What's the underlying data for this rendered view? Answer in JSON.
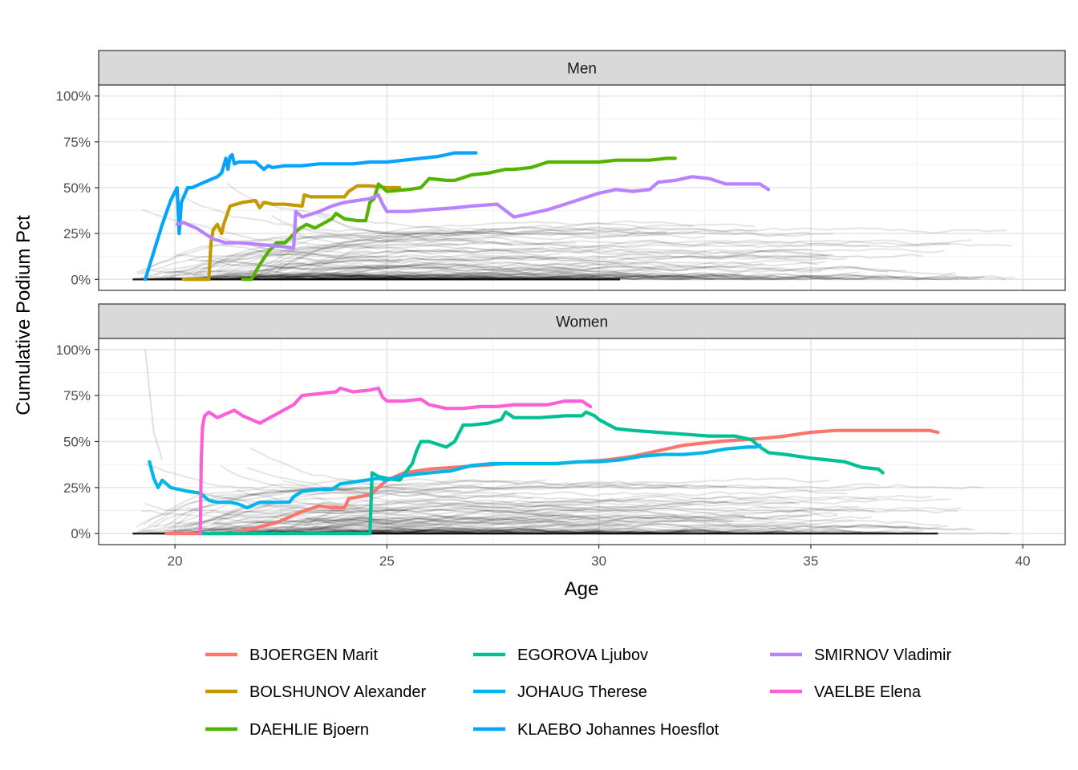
{
  "chart_data": {
    "type": "line",
    "xlabel": "Age",
    "ylabel": "Cumulative Podium Pct",
    "xlim": [
      18.2,
      41.0
    ],
    "ylim": [
      -0.06,
      1.06
    ],
    "x_ticks": [
      20,
      25,
      30,
      35,
      40
    ],
    "x_tick_labels": [
      "20",
      "25",
      "30",
      "35",
      "40"
    ],
    "y_ticks": [
      0,
      0.25,
      0.5,
      0.75,
      1.0
    ],
    "y_tick_labels": [
      "0%",
      "25%",
      "50%",
      "75%",
      "100%"
    ],
    "grid": true,
    "legend_position": "bottom",
    "background_series": "many other skiers drawn as thin translucent grey lines, mostly between 0% and 25%",
    "colors": {
      "BJOERGEN Marit": "#F8766D",
      "BOLSHUNOV Alexander": "#C49A00",
      "DAEHLIE Bjoern": "#53B400",
      "EGOROVA Ljubov": "#00C094",
      "JOHAUG Therese": "#00B6EB",
      "KLAEBO Johannes Hoesflot": "#06A4FF",
      "SMIRNOV Vladimir": "#B983FF",
      "VAELBE Elena": "#FB61D7"
    },
    "legend": [
      "BJOERGEN Marit",
      "BOLSHUNOV Alexander",
      "DAEHLIE Bjoern",
      "EGOROVA Ljubov",
      "JOHAUG Therese",
      "KLAEBO Johannes Hoesflot",
      "SMIRNOV Vladimir",
      "VAELBE Elena"
    ],
    "panels": [
      {
        "title": "Men",
        "series": [
          {
            "name": "KLAEBO Johannes Hoesflot",
            "x": [
              19.3,
              19.5,
              19.7,
              19.9,
              20.05,
              20.1,
              20.15,
              20.3,
              20.4,
              20.7,
              21.0,
              21.1,
              21.2,
              21.25,
              21.3,
              21.35,
              21.4,
              21.5,
              21.7,
              21.9,
              22.1,
              22.2,
              22.3,
              22.6,
              23.0,
              23.4,
              23.8,
              24.2,
              24.6,
              25.0,
              25.4,
              25.8,
              26.2,
              26.4,
              26.6,
              27.1
            ],
            "y": [
              0.0,
              0.15,
              0.3,
              0.43,
              0.5,
              0.25,
              0.42,
              0.5,
              0.5,
              0.53,
              0.56,
              0.58,
              0.66,
              0.6,
              0.67,
              0.68,
              0.63,
              0.64,
              0.64,
              0.64,
              0.6,
              0.62,
              0.61,
              0.62,
              0.62,
              0.63,
              0.63,
              0.63,
              0.64,
              0.64,
              0.65,
              0.66,
              0.67,
              0.68,
              0.69,
              0.69
            ]
          },
          {
            "name": "BOLSHUNOV Alexander",
            "x": [
              20.2,
              20.8,
              20.85,
              20.9,
              21.0,
              21.1,
              21.15,
              21.3,
              21.6,
              21.9,
              22.0,
              22.1,
              22.3,
              22.6,
              23.0,
              23.05,
              23.2,
              23.6,
              24.0,
              24.1,
              24.3,
              24.6,
              25.0,
              25.3
            ],
            "y": [
              0.0,
              0.0,
              0.2,
              0.27,
              0.3,
              0.25,
              0.3,
              0.4,
              0.42,
              0.43,
              0.39,
              0.42,
              0.41,
              0.41,
              0.4,
              0.46,
              0.45,
              0.45,
              0.45,
              0.48,
              0.51,
              0.51,
              0.5,
              0.5
            ]
          },
          {
            "name": "DAEHLIE Bjoern",
            "x": [
              21.6,
              21.8,
              22.0,
              22.2,
              22.4,
              22.6,
              22.9,
              23.1,
              23.3,
              23.7,
              23.8,
              24.0,
              24.3,
              24.5,
              24.6,
              24.7,
              24.8,
              25.0,
              25.5,
              25.8,
              26.0,
              26.4,
              26.6,
              27.0,
              27.4,
              27.8,
              28.0,
              28.4,
              28.8,
              29.2,
              29.6,
              30.0,
              30.4,
              30.8,
              31.2,
              31.6,
              31.8
            ],
            "y": [
              0.0,
              0.0,
              0.08,
              0.15,
              0.2,
              0.2,
              0.27,
              0.3,
              0.28,
              0.33,
              0.36,
              0.33,
              0.32,
              0.32,
              0.42,
              0.44,
              0.52,
              0.48,
              0.49,
              0.5,
              0.55,
              0.54,
              0.54,
              0.57,
              0.58,
              0.6,
              0.6,
              0.61,
              0.64,
              0.64,
              0.64,
              0.64,
              0.65,
              0.65,
              0.65,
              0.66,
              0.66
            ]
          },
          {
            "name": "SMIRNOV Vladimir",
            "x": [
              20.05,
              20.2,
              20.5,
              20.9,
              21.2,
              21.5,
              22.0,
              22.5,
              22.8,
              22.85,
              23.0,
              23.4,
              23.7,
              24.0,
              24.3,
              24.6,
              24.8,
              24.9,
              25.0,
              25.5,
              26.0,
              26.6,
              27.0,
              27.6,
              28.0,
              28.4,
              28.8,
              29.2,
              29.6,
              30.0,
              30.4,
              30.8,
              31.2,
              31.4,
              31.8,
              32.2,
              32.6,
              33.0,
              33.4,
              33.8,
              34.0
            ],
            "y": [
              0.3,
              0.31,
              0.28,
              0.22,
              0.2,
              0.2,
              0.19,
              0.18,
              0.17,
              0.37,
              0.34,
              0.37,
              0.4,
              0.42,
              0.43,
              0.44,
              0.46,
              0.41,
              0.37,
              0.37,
              0.38,
              0.39,
              0.4,
              0.41,
              0.34,
              0.36,
              0.38,
              0.41,
              0.44,
              0.47,
              0.49,
              0.48,
              0.49,
              0.53,
              0.54,
              0.56,
              0.55,
              0.52,
              0.52,
              0.52,
              0.49
            ]
          }
        ]
      },
      {
        "title": "Women",
        "series": [
          {
            "name": "BJOERGEN Marit",
            "x": [
              19.8,
              20.6,
              21.3,
              21.9,
              22.4,
              22.6,
              23.0,
              23.4,
              23.7,
              24.0,
              24.1,
              24.6,
              25.0,
              25.4,
              26.0,
              26.6,
              27.2,
              27.8,
              28.4,
              29.0,
              29.6,
              30.2,
              30.8,
              31.4,
              32.0,
              32.4,
              32.8,
              33.4,
              34.0,
              34.4,
              35.0,
              35.6,
              36.2,
              36.8,
              37.4,
              37.8,
              38.0
            ],
            "y": [
              0.0,
              0.0,
              0.0,
              0.03,
              0.06,
              0.08,
              0.12,
              0.15,
              0.14,
              0.14,
              0.19,
              0.21,
              0.29,
              0.33,
              0.35,
              0.36,
              0.37,
              0.38,
              0.38,
              0.38,
              0.39,
              0.4,
              0.42,
              0.45,
              0.48,
              0.49,
              0.5,
              0.51,
              0.52,
              0.53,
              0.55,
              0.56,
              0.56,
              0.56,
              0.56,
              0.56,
              0.55
            ]
          },
          {
            "name": "EGOROVA Ljubov",
            "x": [
              20.6,
              22.0,
              23.5,
              24.6,
              24.65,
              24.8,
              25.0,
              25.3,
              25.6,
              25.7,
              25.8,
              26.0,
              26.4,
              26.6,
              26.8,
              27.0,
              27.4,
              27.7,
              27.8,
              28.0,
              28.6,
              29.2,
              29.6,
              29.7,
              29.9,
              30.0,
              30.4,
              30.8,
              31.4,
              32.0,
              32.6,
              33.2,
              33.6,
              33.8,
              34.0,
              34.4,
              35.0,
              35.4,
              35.8,
              36.2,
              36.6,
              36.7
            ],
            "y": [
              0.0,
              0.0,
              0.0,
              0.0,
              0.33,
              0.31,
              0.3,
              0.29,
              0.38,
              0.45,
              0.5,
              0.5,
              0.47,
              0.5,
              0.59,
              0.59,
              0.6,
              0.62,
              0.66,
              0.63,
              0.63,
              0.64,
              0.64,
              0.66,
              0.64,
              0.62,
              0.57,
              0.56,
              0.55,
              0.54,
              0.53,
              0.53,
              0.51,
              0.47,
              0.44,
              0.43,
              0.41,
              0.4,
              0.39,
              0.36,
              0.35,
              0.33
            ]
          },
          {
            "name": "JOHAUG Therese",
            "x": [
              19.4,
              19.5,
              19.6,
              19.7,
              19.9,
              20.3,
              20.6,
              20.8,
              21.0,
              21.3,
              21.5,
              21.7,
              22.0,
              22.4,
              22.7,
              22.8,
              23.0,
              23.4,
              23.7,
              23.9,
              24.2,
              24.5,
              24.8,
              25.0,
              25.3,
              25.6,
              26.0,
              26.5,
              27.0,
              27.5,
              28.0,
              28.5,
              29.0,
              29.5,
              30.0,
              30.5,
              31.0,
              31.5,
              32.0,
              32.5,
              33.0,
              33.5,
              33.7,
              33.8
            ],
            "y": [
              0.39,
              0.3,
              0.25,
              0.29,
              0.25,
              0.23,
              0.22,
              0.18,
              0.17,
              0.17,
              0.16,
              0.14,
              0.17,
              0.17,
              0.17,
              0.2,
              0.23,
              0.24,
              0.24,
              0.27,
              0.28,
              0.29,
              0.3,
              0.29,
              0.31,
              0.32,
              0.33,
              0.34,
              0.37,
              0.38,
              0.38,
              0.38,
              0.38,
              0.39,
              0.39,
              0.4,
              0.42,
              0.43,
              0.43,
              0.44,
              0.46,
              0.47,
              0.47,
              0.48
            ]
          },
          {
            "name": "VAELBE Elena",
            "x": [
              20.6,
              20.62,
              20.65,
              20.7,
              20.8,
              21.0,
              21.2,
              21.4,
              21.6,
              21.8,
              22.0,
              22.4,
              22.8,
              23.0,
              23.4,
              23.8,
              23.9,
              24.2,
              24.6,
              24.8,
              24.9,
              25.0,
              25.4,
              25.8,
              26.0,
              26.4,
              26.8,
              27.2,
              27.6,
              28.0,
              28.4,
              28.8,
              29.2,
              29.6,
              29.8
            ],
            "y": [
              0.0,
              0.4,
              0.58,
              0.64,
              0.66,
              0.63,
              0.65,
              0.67,
              0.64,
              0.62,
              0.6,
              0.65,
              0.7,
              0.75,
              0.76,
              0.77,
              0.79,
              0.77,
              0.78,
              0.79,
              0.74,
              0.72,
              0.72,
              0.73,
              0.7,
              0.68,
              0.68,
              0.69,
              0.69,
              0.7,
              0.7,
              0.7,
              0.72,
              0.72,
              0.69
            ]
          }
        ]
      }
    ]
  }
}
